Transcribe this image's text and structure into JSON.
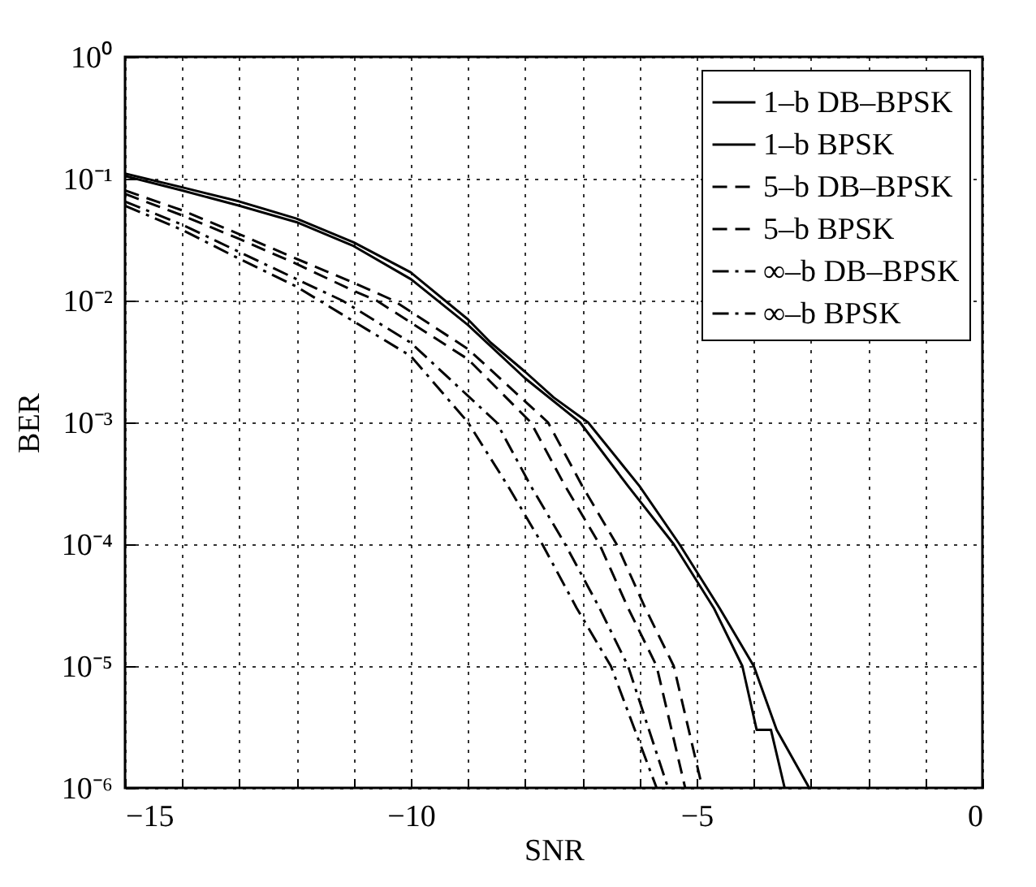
{
  "chart_data": {
    "type": "line",
    "xlabel": "SNR",
    "ylabel": "BER",
    "log": "y",
    "grid": true,
    "legend": "top right",
    "xlim": [
      -15,
      0
    ],
    "ylim": [
      1e-06,
      1
    ],
    "xticks": [
      -15,
      {
        "value": -14,
        "label": null
      },
      {
        "value": -13,
        "label": null
      },
      {
        "value": -12,
        "label": null
      },
      {
        "value": -11,
        "label": null
      },
      -10,
      {
        "value": -9,
        "label": null
      },
      {
        "value": -8,
        "label": null
      },
      {
        "value": -7,
        "label": null
      },
      {
        "value": -6,
        "label": null
      },
      -5,
      {
        "value": -4,
        "label": null
      },
      {
        "value": -3,
        "label": null
      },
      {
        "value": -2,
        "label": null
      },
      {
        "value": -1,
        "label": null
      },
      0
    ],
    "yticks": [
      {
        "value": 1e-06,
        "label": "10⁻⁶"
      },
      {
        "value": 1e-05,
        "label": "10⁻⁵"
      },
      {
        "value": 0.0001,
        "label": "10⁻⁴"
      },
      {
        "value": 0.001,
        "label": "10⁻³"
      },
      {
        "value": 0.01,
        "label": "10⁻²"
      },
      {
        "value": 0.1,
        "label": "10⁻¹"
      },
      {
        "value": 1,
        "label": "10⁰"
      }
    ],
    "series": [
      {
        "name": "1–b DB–BPSK",
        "color": "#000000",
        "line_style": "solid",
        "x": [
          -15,
          -14,
          -13,
          -12,
          -11,
          -10,
          -9,
          -8.6,
          -8,
          -7.5,
          -6.9,
          -6,
          -5.3,
          -4.6,
          -4,
          -3.6,
          -3.03
        ],
        "values": [
          0.11,
          0.085,
          0.065,
          0.047,
          0.03,
          0.017,
          0.007,
          0.0045,
          0.0026,
          0.0016,
          0.001,
          0.0003,
          0.0001,
          3e-05,
          1e-05,
          3e-06,
          1e-06
        ]
      },
      {
        "name": "1–b BPSK",
        "color": "#000000",
        "line_style": "solid",
        "x": [
          -15,
          -14,
          -13,
          -12,
          -11,
          -10,
          -9,
          -8,
          -7.04,
          -6.2,
          -5.4,
          -4.7,
          -4.2,
          -3.95,
          -3.7,
          -3.46
        ],
        "values": [
          0.105,
          0.08,
          0.06,
          0.044,
          0.028,
          0.015,
          0.0063,
          0.0023,
          0.001,
          0.0003,
          0.0001,
          3e-05,
          1e-05,
          3e-06,
          3e-06,
          1e-06
        ]
      },
      {
        "name": "5–b DB–BPSK",
        "color": "#000000",
        "line_style": "dashed",
        "x": [
          -15,
          -14,
          -13,
          -12,
          -11,
          -10.3,
          -9,
          -7.6,
          -7,
          -6.4,
          -5.9,
          -5.4,
          -4.9
        ],
        "values": [
          0.08,
          0.055,
          0.035,
          0.022,
          0.014,
          0.01,
          0.004,
          0.001,
          0.0003,
          0.0001,
          3e-05,
          1e-05,
          1e-06
        ]
      },
      {
        "name": "5–b BPSK",
        "color": "#000000",
        "line_style": "dashed",
        "x": [
          -15,
          -14,
          -13,
          -12,
          -11,
          -10.6,
          -9,
          -7.9,
          -7.3,
          -6.7,
          -6.2,
          -5.7,
          -5.2
        ],
        "values": [
          0.075,
          0.05,
          0.032,
          0.02,
          0.012,
          0.01,
          0.0033,
          0.001,
          0.0003,
          0.0001,
          3e-05,
          1e-05,
          1e-06
        ]
      },
      {
        "name": "∞–b DB–BPSK",
        "color": "#000000",
        "line_style": "dashdot",
        "x": [
          -15,
          -14,
          -13,
          -12,
          -11.2,
          -10,
          -8.5,
          -7.9,
          -7.3,
          -6.7,
          -6.2,
          -5.5
        ],
        "values": [
          0.065,
          0.042,
          0.025,
          0.015,
          0.01,
          0.0045,
          0.001,
          0.0003,
          0.0001,
          3e-05,
          1e-05,
          1e-06
        ]
      },
      {
        "name": "∞–b BPSK",
        "color": "#000000",
        "line_style": "dashdot",
        "x": [
          -15,
          -14,
          -13,
          -12,
          -11.6,
          -10,
          -9,
          -8.3,
          -7.7,
          -7.1,
          -6.5,
          -5.7
        ],
        "values": [
          0.06,
          0.038,
          0.022,
          0.013,
          0.01,
          0.0035,
          0.001,
          0.0003,
          0.0001,
          3e-05,
          1e-05,
          1e-06
        ]
      }
    ]
  }
}
